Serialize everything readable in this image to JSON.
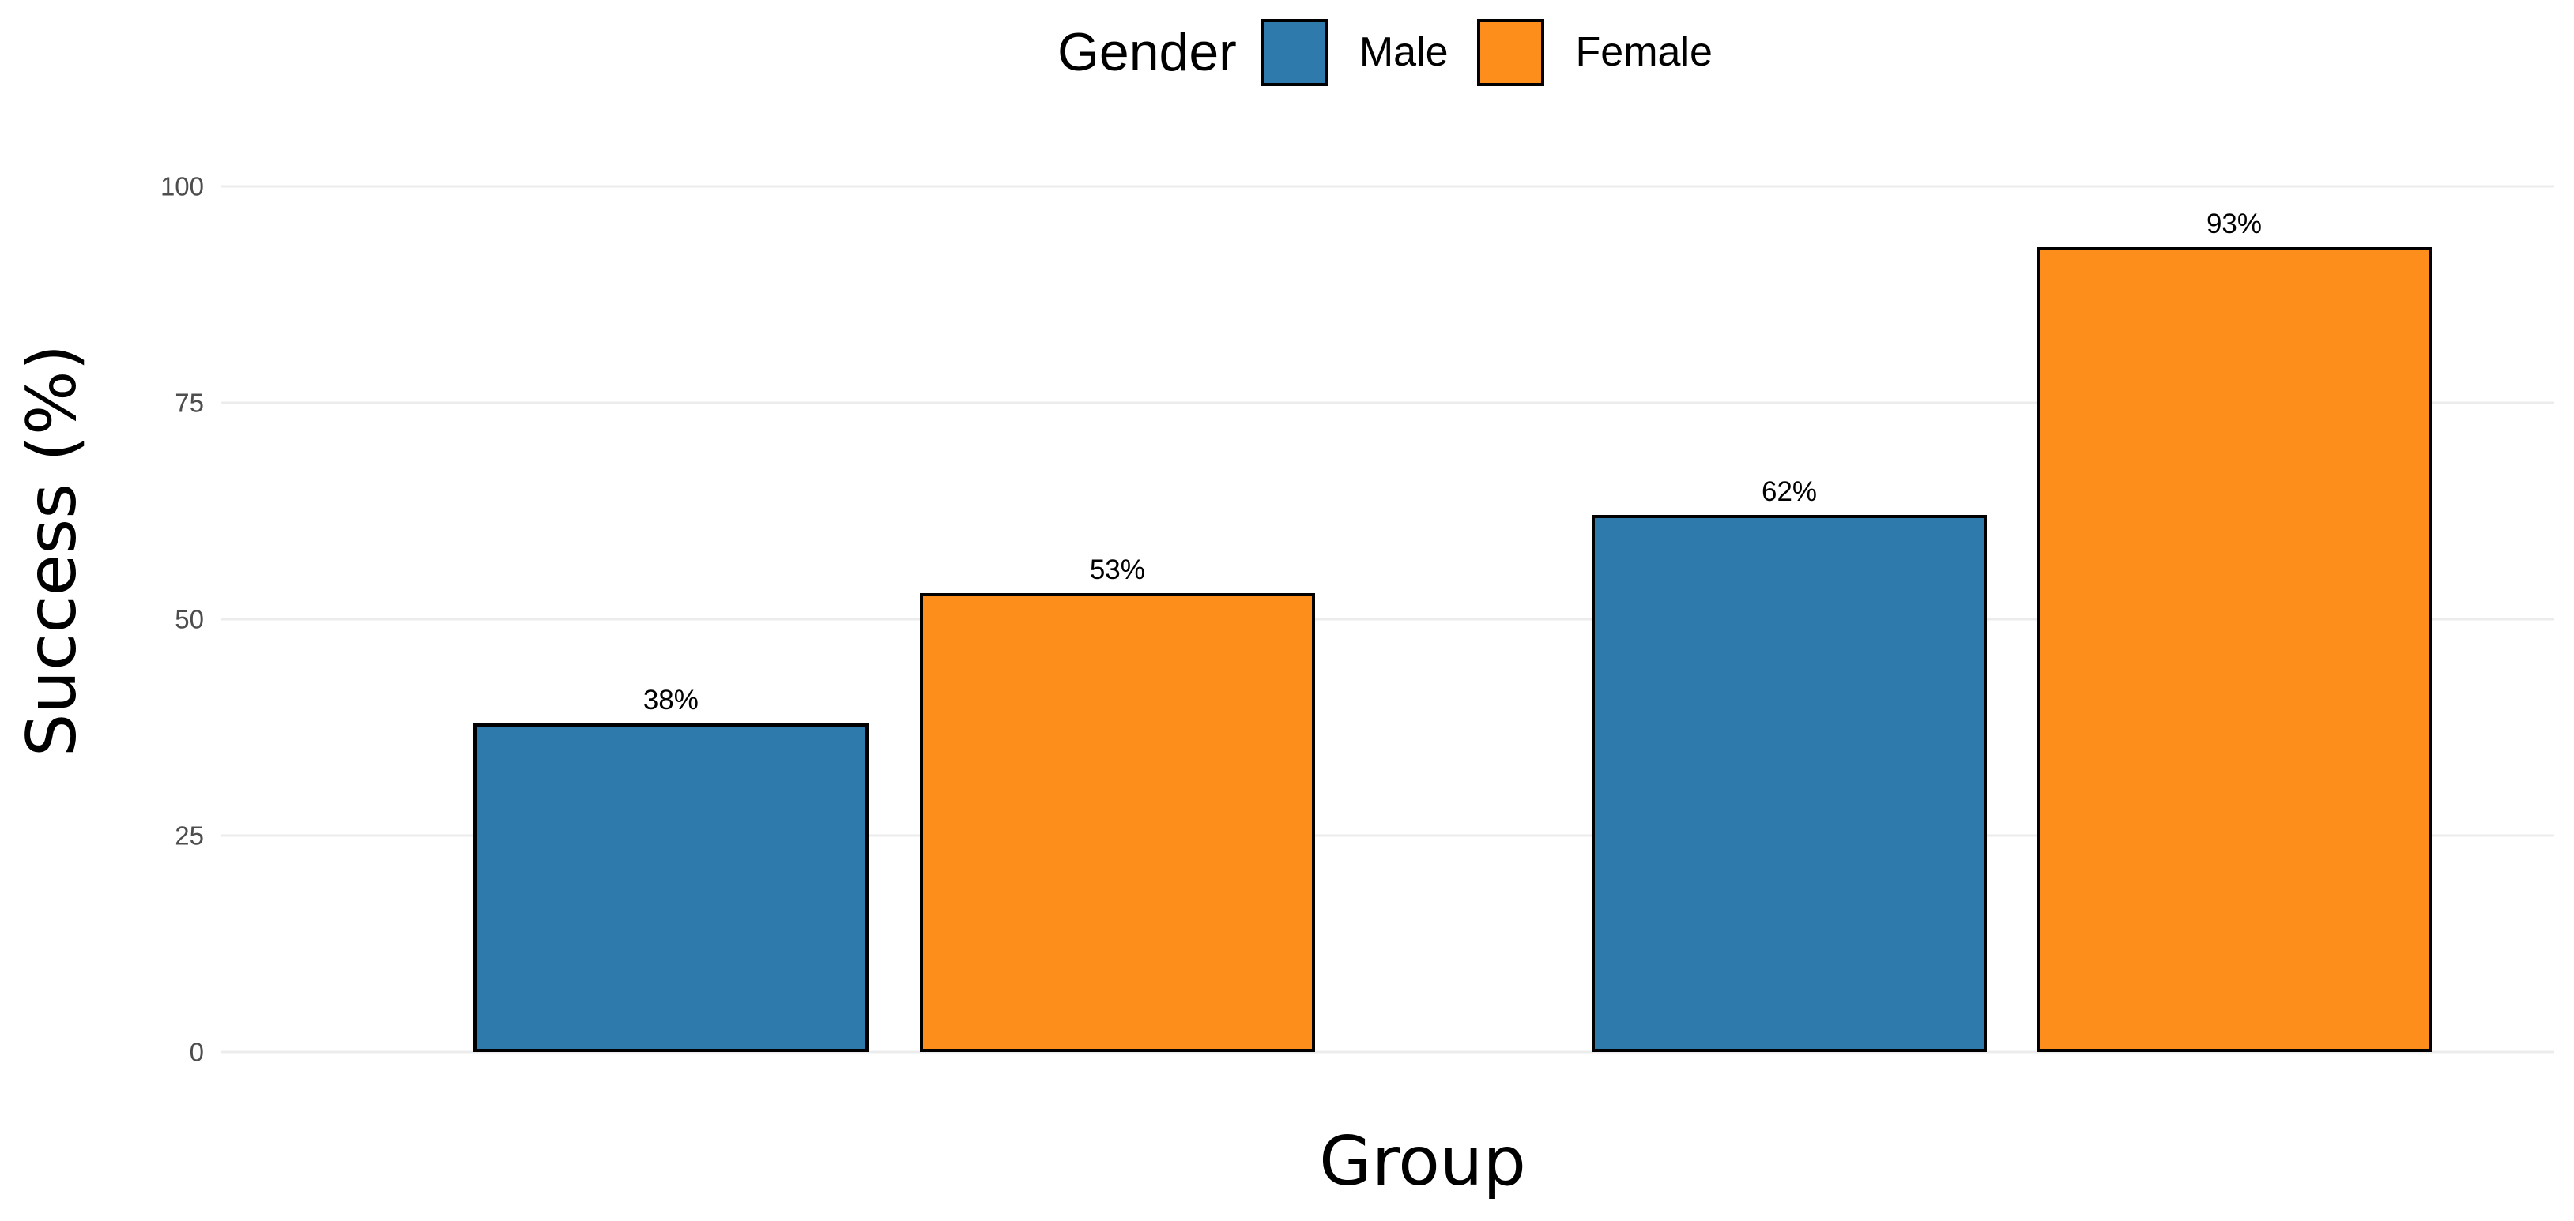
{
  "legend": {
    "title": "Gender",
    "items": [
      {
        "label": "Male",
        "color": "#2E7AAD"
      },
      {
        "label": "Female",
        "color": "#FD8E1B"
      }
    ]
  },
  "chart_data": {
    "type": "bar",
    "title": "",
    "xlabel": "Group",
    "ylabel": "Success (%)",
    "categories": [
      "",
      ""
    ],
    "x_tick_labels_visible": false,
    "series": [
      {
        "name": "Male",
        "color": "#2E7AAD",
        "values": [
          38,
          62
        ],
        "labels": [
          "38%",
          "62%"
        ]
      },
      {
        "name": "Female",
        "color": "#FD8E1B",
        "values": [
          53,
          93
        ],
        "labels": [
          "53%",
          "93%"
        ]
      }
    ],
    "yticks": [
      0,
      25,
      50,
      75,
      100
    ],
    "ylim": [
      0,
      100
    ],
    "grid": "horizontal-major",
    "gridline_color": "#ECECEC",
    "tick_label_color": "#4D4D4D",
    "bar_border_color": "#000000",
    "background_color": "#FFFFFF",
    "legend_position": "top-center",
    "bar_layout": "grouped-dodged"
  }
}
